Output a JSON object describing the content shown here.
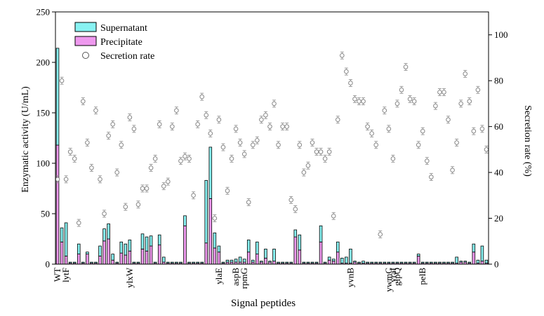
{
  "chart_data": {
    "type": "bar",
    "stacked": true,
    "xlabel": "Signal peptides",
    "ylabel": "Enzymatic activity (U/mL)",
    "y2label": "Secretion rate (%)",
    "ylim": [
      0,
      250
    ],
    "y2lim": [
      0,
      110
    ],
    "yticks": [
      0,
      50,
      100,
      150,
      200,
      250
    ],
    "y2ticks": [
      0,
      20,
      40,
      60,
      80,
      100
    ],
    "grid": false,
    "legend_position": "top-left",
    "legend": {
      "supernatant": "Supernatant",
      "precipitate": "Precipitate",
      "rate": "Secretion rate"
    },
    "colors": {
      "supernatant": "#88f2f2",
      "precipitate": "#ee99ee",
      "rate": "#888888",
      "axis": "#000000"
    },
    "labeled_categories": [
      {
        "index": 0,
        "label": "WT"
      },
      {
        "index": 2,
        "label": "lytF"
      },
      {
        "index": 17,
        "label": "ylxW"
      },
      {
        "index": 38,
        "label": "ylaE"
      },
      {
        "index": 42,
        "label": "aspB"
      },
      {
        "index": 44,
        "label": "rpmG"
      },
      {
        "index": 69,
        "label": "yvnB"
      },
      {
        "index": 78,
        "label": "ywmC"
      },
      {
        "index": 79,
        "label": "yraI"
      },
      {
        "index": 80,
        "label": "glpQ"
      },
      {
        "index": 86,
        "label": "pelB"
      }
    ],
    "precipitate": [
      118,
      22,
      8,
      1,
      1,
      10,
      1,
      10,
      1,
      1,
      8,
      23,
      25,
      4,
      1,
      11,
      9,
      13,
      1,
      1,
      15,
      13,
      18,
      1,
      19,
      2,
      1,
      1,
      1,
      1,
      38,
      1,
      1,
      1,
      1,
      21,
      65,
      16,
      12,
      1,
      2,
      2,
      2,
      2,
      2,
      12,
      2,
      10,
      2,
      6,
      2,
      3,
      1,
      1,
      1,
      1,
      27,
      14,
      1,
      1,
      1,
      1,
      22,
      1,
      4,
      3,
      12,
      1,
      1,
      1,
      2,
      1,
      1,
      1,
      1,
      1,
      1,
      1,
      1,
      1,
      1,
      1,
      1,
      1,
      1,
      8,
      1,
      1,
      1,
      1,
      1,
      1,
      1,
      1,
      1,
      2,
      2,
      1,
      12,
      1,
      3,
      1
    ],
    "supernatant": [
      96,
      14,
      33,
      1,
      1,
      10,
      1,
      2,
      1,
      1,
      10,
      12,
      15,
      6,
      1,
      11,
      11,
      11,
      1,
      1,
      15,
      14,
      10,
      1,
      10,
      5,
      1,
      1,
      1,
      1,
      10,
      1,
      1,
      1,
      1,
      62,
      51,
      15,
      6,
      1,
      2,
      2,
      3,
      5,
      3,
      12,
      2,
      12,
      1,
      9,
      1,
      12,
      1,
      1,
      1,
      1,
      7,
      15,
      1,
      1,
      1,
      1,
      16,
      1,
      3,
      2,
      10,
      5,
      6,
      14,
      1,
      1,
      2,
      1,
      1,
      1,
      1,
      1,
      1,
      1,
      1,
      1,
      1,
      1,
      1,
      2,
      1,
      1,
      1,
      1,
      1,
      1,
      1,
      1,
      6,
      1,
      1,
      1,
      8,
      3,
      15,
      3
    ],
    "secretion_rate": [
      37,
      80,
      37,
      49,
      46,
      18,
      71,
      53,
      42,
      67,
      37,
      22,
      56,
      61,
      40,
      52,
      25,
      64,
      59,
      26,
      33,
      33,
      42,
      46,
      61,
      34,
      36,
      60,
      67,
      45,
      47,
      46,
      30,
      61,
      73,
      65,
      57,
      20,
      63,
      51,
      32,
      46,
      59,
      53,
      48,
      27,
      52,
      54,
      63,
      65,
      60,
      70,
      52,
      60,
      60,
      28,
      24,
      52,
      40,
      43,
      53,
      49,
      49,
      46,
      49,
      21,
      63,
      91,
      84,
      79,
      72,
      71,
      71,
      60,
      57,
      52,
      13,
      67,
      59,
      46,
      70,
      76,
      86,
      72,
      71,
      52,
      58,
      45,
      38,
      69,
      75,
      75,
      63,
      41,
      53,
      70,
      83,
      71,
      58,
      76,
      59,
      50
    ]
  }
}
